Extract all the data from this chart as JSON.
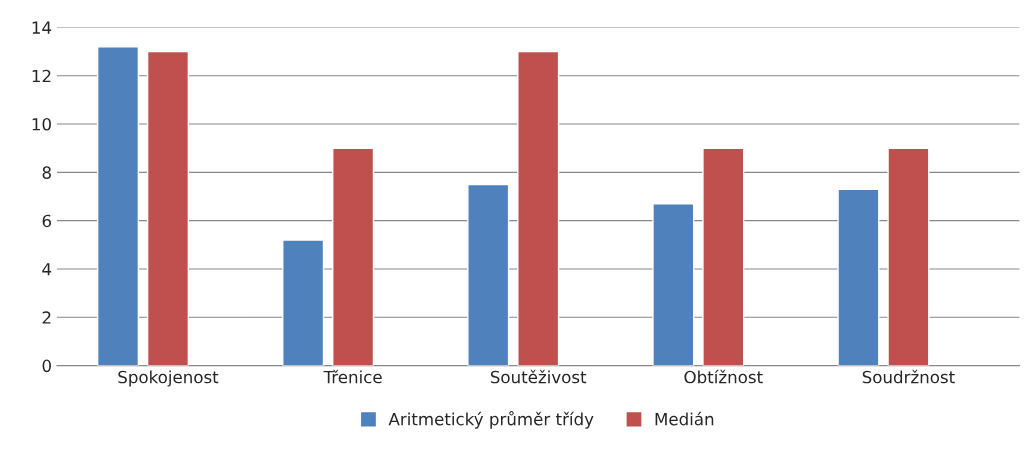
{
  "chart_data": {
    "type": "bar",
    "categories": [
      "Spokojenost",
      "Třenice",
      "Soutěživost",
      "Obtížnost",
      "Soudržnost"
    ],
    "series": [
      {
        "name": "Aritmetický průměr třídy",
        "color": "#4f81bd",
        "values": [
          13.2,
          5.2,
          7.5,
          6.7,
          7.3
        ]
      },
      {
        "name": "Medián",
        "color": "#c0504d",
        "values": [
          13,
          9,
          13,
          9,
          9
        ]
      }
    ],
    "ylim": [
      0,
      14
    ],
    "yticks": [
      0,
      2,
      4,
      6,
      8,
      10,
      12,
      14
    ],
    "grid": "y",
    "legend": "bottom"
  }
}
